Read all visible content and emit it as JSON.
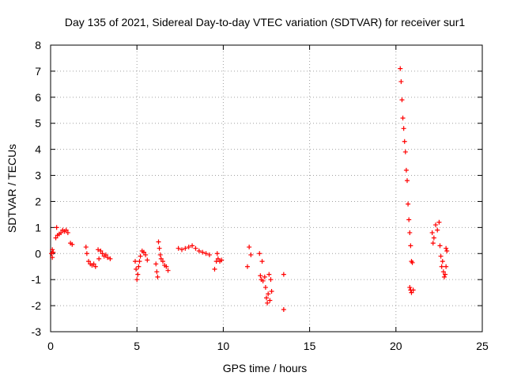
{
  "chart_data": {
    "type": "scatter",
    "title": "Day 135 of 2021, Sidereal Day-to-day VTEC variation (SDTVAR) for receiver sur1",
    "xlabel": "GPS time / hours",
    "ylabel": "SDTVAR / TECUs",
    "xlim": [
      0,
      25
    ],
    "ylim": [
      -3,
      8
    ],
    "xticks": [
      "0",
      "5",
      "10",
      "15",
      "20",
      "25"
    ],
    "yticks": [
      "-3",
      "-2",
      "-1",
      "0",
      "1",
      "2",
      "3",
      "4",
      "5",
      "6",
      "7",
      "8"
    ],
    "grid": true,
    "marker": "+",
    "series": [
      {
        "name": "SDTVAR",
        "color": "#ff0000",
        "points": [
          [
            0.05,
            0.0
          ],
          [
            0.1,
            0.15
          ],
          [
            0.1,
            -0.15
          ],
          [
            0.15,
            0.05
          ],
          [
            0.3,
            0.6
          ],
          [
            0.35,
            1.0
          ],
          [
            0.4,
            0.7
          ],
          [
            0.5,
            0.75
          ],
          [
            0.6,
            0.8
          ],
          [
            0.7,
            0.9
          ],
          [
            0.8,
            0.85
          ],
          [
            0.9,
            0.9
          ],
          [
            1.0,
            0.8
          ],
          [
            1.15,
            0.4
          ],
          [
            1.25,
            0.35
          ],
          [
            2.05,
            0.25
          ],
          [
            2.1,
            0.0
          ],
          [
            2.2,
            -0.3
          ],
          [
            2.3,
            -0.4
          ],
          [
            2.4,
            -0.45
          ],
          [
            2.5,
            -0.4
          ],
          [
            2.6,
            -0.5
          ],
          [
            2.75,
            0.15
          ],
          [
            2.8,
            -0.2
          ],
          [
            2.9,
            0.1
          ],
          [
            3.0,
            0.0
          ],
          [
            3.1,
            -0.1
          ],
          [
            3.2,
            -0.05
          ],
          [
            3.3,
            -0.15
          ],
          [
            3.45,
            -0.2
          ],
          [
            4.9,
            -0.3
          ],
          [
            4.95,
            -0.6
          ],
          [
            5.0,
            -1.0
          ],
          [
            5.05,
            -0.8
          ],
          [
            5.1,
            -0.5
          ],
          [
            5.15,
            -0.3
          ],
          [
            5.2,
            -0.1
          ],
          [
            5.3,
            0.1
          ],
          [
            5.4,
            0.05
          ],
          [
            5.5,
            -0.05
          ],
          [
            5.6,
            -0.25
          ],
          [
            6.1,
            -0.4
          ],
          [
            6.15,
            -0.7
          ],
          [
            6.2,
            -0.9
          ],
          [
            6.25,
            0.45
          ],
          [
            6.3,
            0.2
          ],
          [
            6.35,
            -0.05
          ],
          [
            6.4,
            -0.2
          ],
          [
            6.5,
            -0.3
          ],
          [
            6.6,
            -0.45
          ],
          [
            6.7,
            -0.5
          ],
          [
            6.8,
            -0.65
          ],
          [
            7.4,
            0.2
          ],
          [
            7.6,
            0.15
          ],
          [
            7.8,
            0.2
          ],
          [
            8.0,
            0.25
          ],
          [
            8.2,
            0.3
          ],
          [
            8.4,
            0.2
          ],
          [
            8.6,
            0.1
          ],
          [
            8.8,
            0.05
          ],
          [
            9.0,
            0.0
          ],
          [
            9.2,
            -0.05
          ],
          [
            9.5,
            -0.6
          ],
          [
            9.6,
            -0.3
          ],
          [
            9.65,
            0.0
          ],
          [
            9.7,
            -0.2
          ],
          [
            9.8,
            -0.3
          ],
          [
            9.9,
            -0.25
          ],
          [
            11.4,
            -0.5
          ],
          [
            11.5,
            0.25
          ],
          [
            11.6,
            -0.05
          ],
          [
            12.1,
            0.0
          ],
          [
            12.15,
            -0.85
          ],
          [
            12.2,
            -1.0
          ],
          [
            12.25,
            -0.3
          ],
          [
            12.3,
            -1.05
          ],
          [
            12.4,
            -0.9
          ],
          [
            12.45,
            -1.3
          ],
          [
            12.5,
            -1.7
          ],
          [
            12.55,
            -1.9
          ],
          [
            12.6,
            -1.55
          ],
          [
            12.65,
            -0.8
          ],
          [
            12.7,
            -1.8
          ],
          [
            12.75,
            -1.0
          ],
          [
            12.8,
            -1.45
          ],
          [
            13.5,
            -0.8
          ],
          [
            13.5,
            -2.15
          ],
          [
            20.25,
            7.1
          ],
          [
            20.3,
            6.6
          ],
          [
            20.35,
            5.9
          ],
          [
            20.4,
            5.2
          ],
          [
            20.45,
            4.8
          ],
          [
            20.5,
            4.3
          ],
          [
            20.55,
            3.9
          ],
          [
            20.6,
            3.2
          ],
          [
            20.65,
            2.8
          ],
          [
            20.7,
            1.9
          ],
          [
            20.75,
            1.3
          ],
          [
            20.8,
            0.8
          ],
          [
            20.85,
            0.3
          ],
          [
            20.9,
            -0.3
          ],
          [
            20.95,
            -0.35
          ],
          [
            20.8,
            -1.3
          ],
          [
            20.85,
            -1.4
          ],
          [
            20.9,
            -1.5
          ],
          [
            21.0,
            -1.4
          ],
          [
            22.1,
            0.8
          ],
          [
            22.15,
            0.4
          ],
          [
            22.2,
            0.6
          ],
          [
            22.3,
            1.1
          ],
          [
            22.4,
            0.9
          ],
          [
            22.5,
            1.2
          ],
          [
            22.55,
            0.3
          ],
          [
            22.6,
            -0.1
          ],
          [
            22.65,
            -0.5
          ],
          [
            22.7,
            -0.3
          ],
          [
            22.75,
            -0.7
          ],
          [
            22.8,
            -0.9
          ],
          [
            22.85,
            -0.8
          ],
          [
            22.9,
            -0.5
          ],
          [
            22.9,
            0.2
          ],
          [
            22.95,
            0.1
          ]
        ]
      }
    ]
  }
}
